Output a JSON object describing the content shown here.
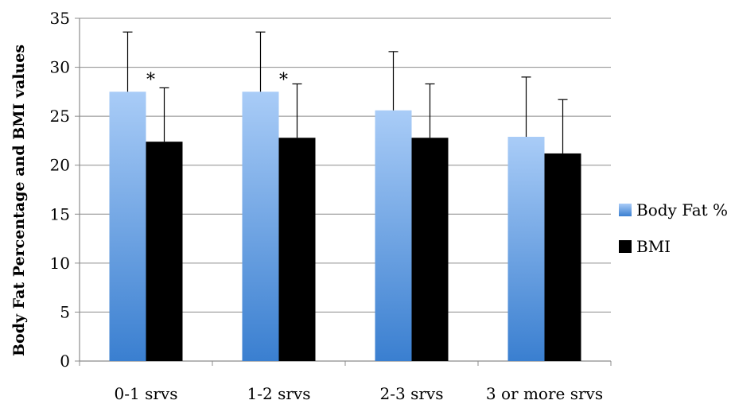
{
  "chart_data": {
    "type": "bar",
    "title": "",
    "xlabel": "",
    "ylabel": "Body Fat Percentage and BMI values",
    "ylim": [
      0,
      35
    ],
    "yticks": [
      0,
      5,
      10,
      15,
      20,
      25,
      30,
      35
    ],
    "grid": true,
    "legend_position": "right",
    "categories": [
      "0-1 srvs",
      "1-2 srvs",
      "2-3 srvs",
      "3 or more srvs"
    ],
    "series": [
      {
        "name": "Body Fat %",
        "values": [
          27.5,
          27.5,
          25.6,
          22.9
        ],
        "error_upper": [
          33.6,
          33.6,
          31.6,
          29.0
        ],
        "color_top": "#a9ccf7",
        "color_bottom": "#3a7fd0"
      },
      {
        "name": "BMI",
        "values": [
          22.4,
          22.8,
          22.8,
          21.2
        ],
        "error_upper": [
          27.9,
          28.3,
          28.3,
          26.7
        ],
        "color": "#000000"
      }
    ],
    "annotations": [
      {
        "text": "*",
        "category": "0-1 srvs"
      },
      {
        "text": "*",
        "category": "1-2 srvs"
      }
    ]
  }
}
